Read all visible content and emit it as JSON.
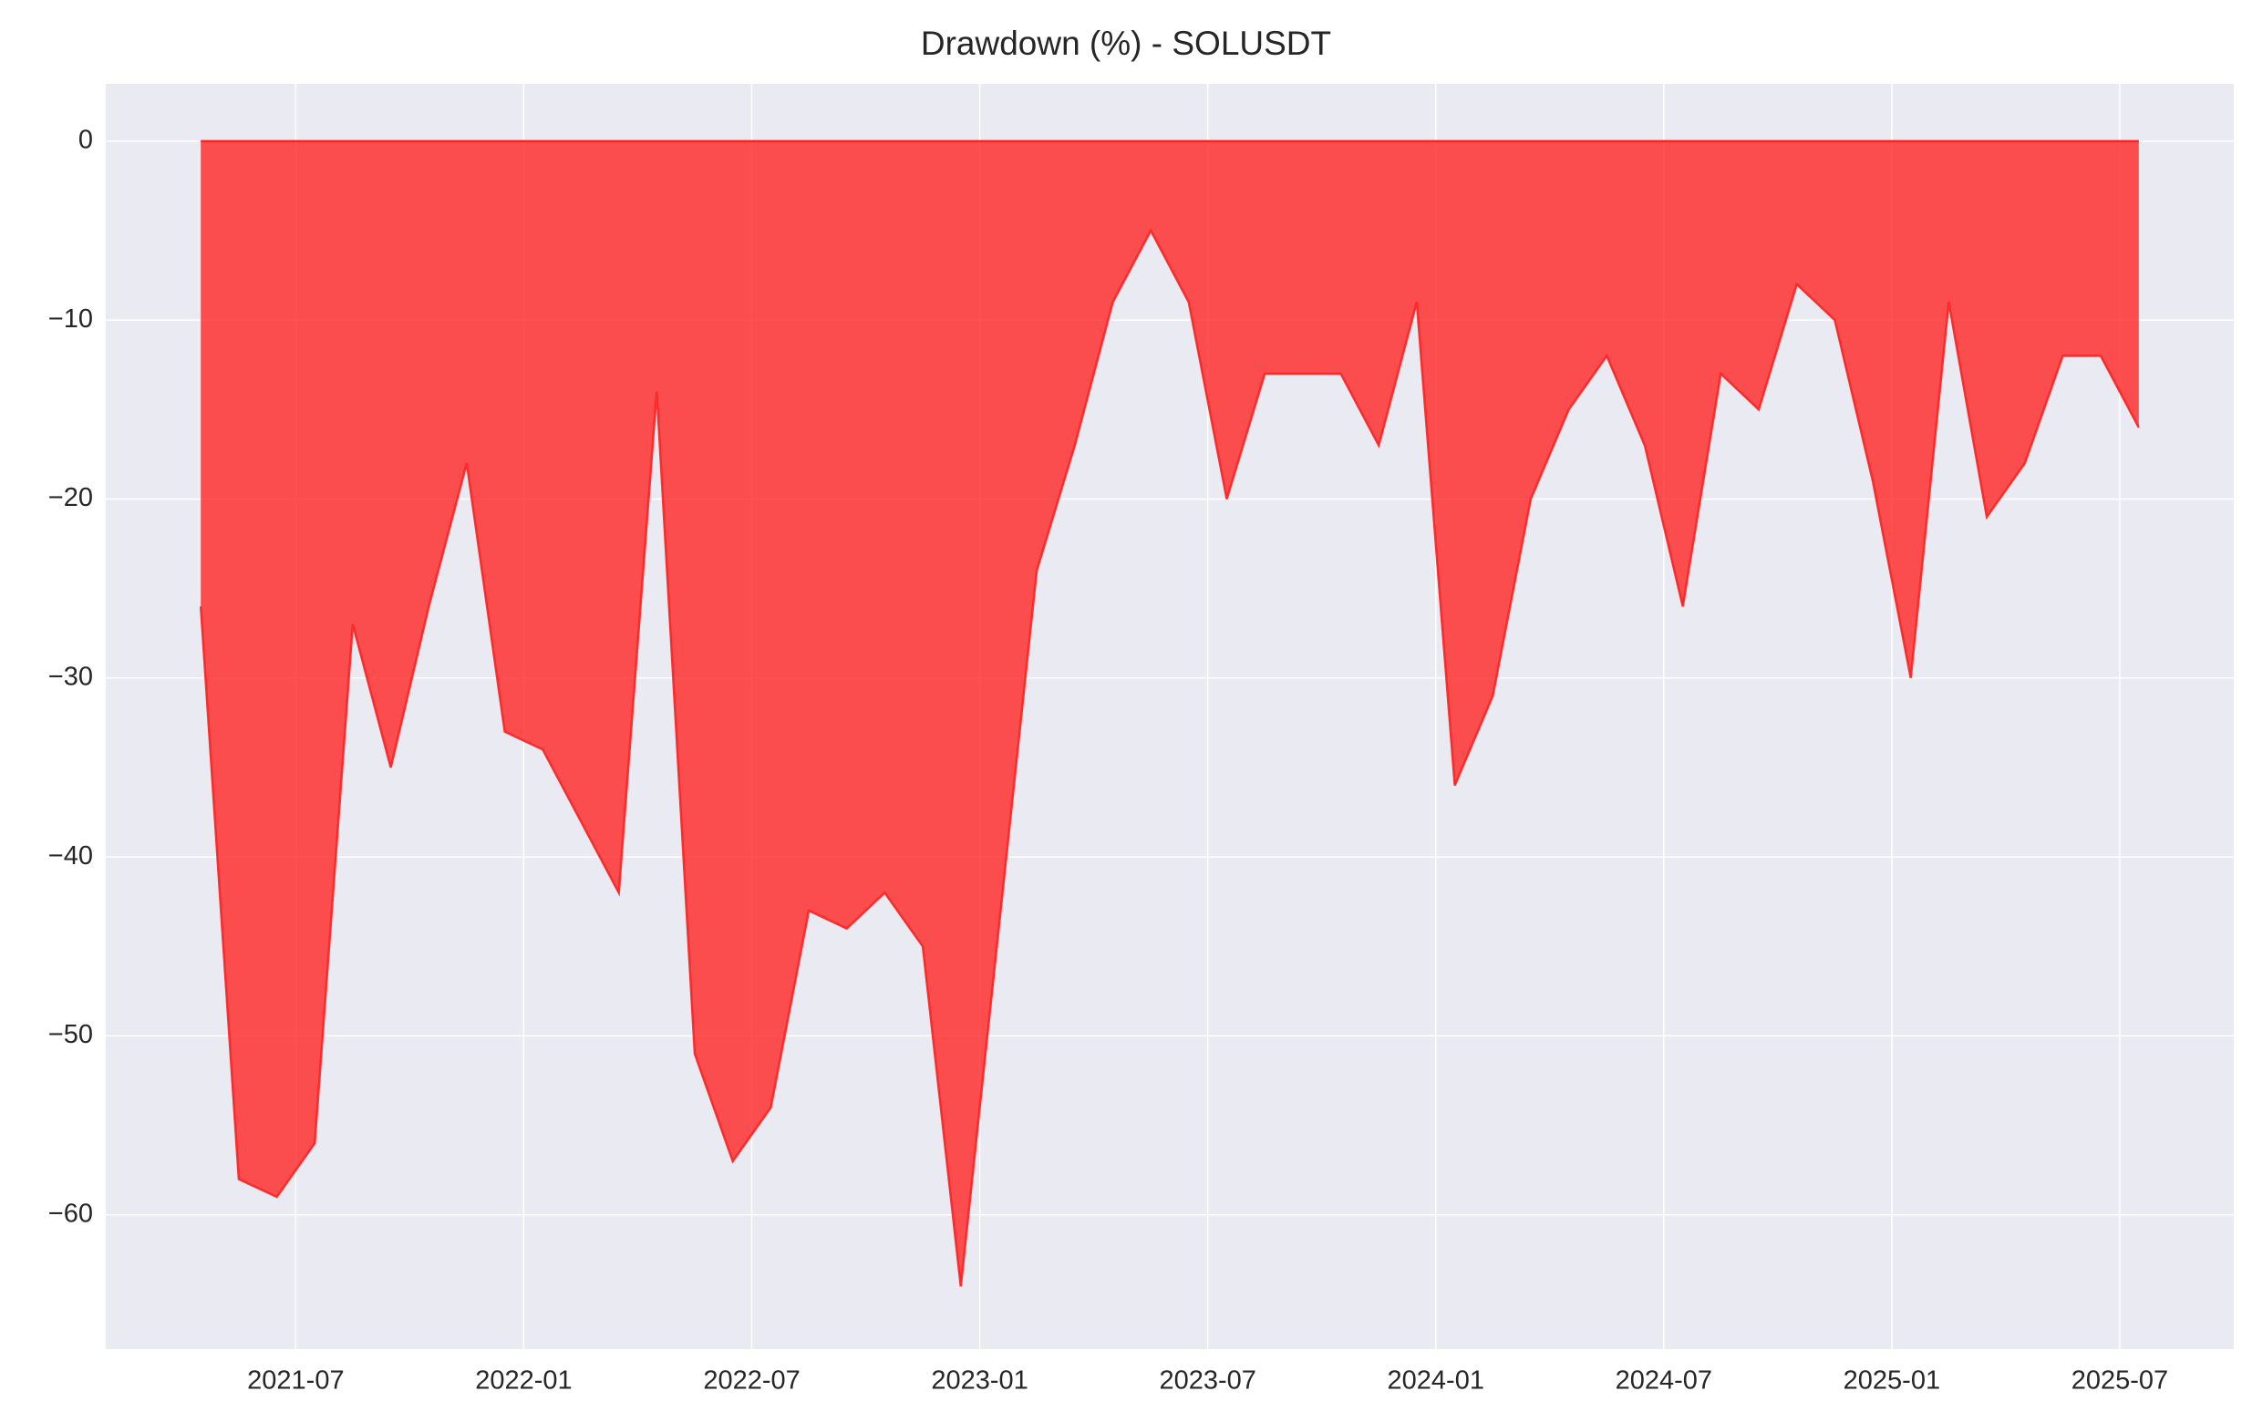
{
  "chart_data": {
    "type": "area",
    "title": "Drawdown (%) - SOLUSDT",
    "x": [
      "2021-04",
      "2021-05",
      "2021-06",
      "2021-07",
      "2021-08",
      "2021-09",
      "2021-10",
      "2021-11",
      "2021-12",
      "2022-01",
      "2022-02",
      "2022-03",
      "2022-04",
      "2022-05",
      "2022-06",
      "2022-07",
      "2022-08",
      "2022-09",
      "2022-10",
      "2022-11",
      "2022-12",
      "2023-01",
      "2023-02",
      "2023-03",
      "2023-04",
      "2023-05",
      "2023-06",
      "2023-07",
      "2023-08",
      "2023-09",
      "2023-10",
      "2023-11",
      "2023-12",
      "2024-01",
      "2024-02",
      "2024-03",
      "2024-04",
      "2024-05",
      "2024-06",
      "2024-07",
      "2024-08",
      "2024-09",
      "2024-10",
      "2024-11",
      "2024-12",
      "2025-01",
      "2025-02",
      "2025-03",
      "2025-04",
      "2025-05",
      "2025-06",
      "2025-07"
    ],
    "values": [
      -26,
      -58,
      -59,
      -56,
      -27,
      -35,
      -26,
      -18,
      -33,
      -34,
      -38,
      -42,
      -14,
      -51,
      -57,
      -54,
      -43,
      -44,
      -42,
      -45,
      -64,
      -44,
      -24,
      -17,
      -9,
      -5,
      -9,
      -20,
      -13,
      -13,
      -13,
      -17,
      -9,
      -36,
      -31,
      -20,
      -15,
      -12,
      -17,
      -26,
      -13,
      -15,
      -8,
      -10,
      -19,
      -30,
      -9,
      -21,
      -18,
      -12,
      -12,
      -16
    ],
    "color": "#ff2020",
    "xlim": [
      "2021-02",
      "2025-10"
    ],
    "xticks": [
      "2021-07",
      "2022-01",
      "2022-07",
      "2023-01",
      "2023-07",
      "2024-01",
      "2024-07",
      "2025-01",
      "2025-07"
    ],
    "ylim": [
      -67.5,
      3.2
    ],
    "yticks": [
      {
        "value": -60,
        "label": "−60"
      },
      {
        "value": -50,
        "label": "−50"
      },
      {
        "value": -40,
        "label": "−40"
      },
      {
        "value": -30,
        "label": "−30"
      },
      {
        "value": -20,
        "label": "−20"
      },
      {
        "value": -10,
        "label": "−10"
      },
      0
    ],
    "grid": true
  }
}
